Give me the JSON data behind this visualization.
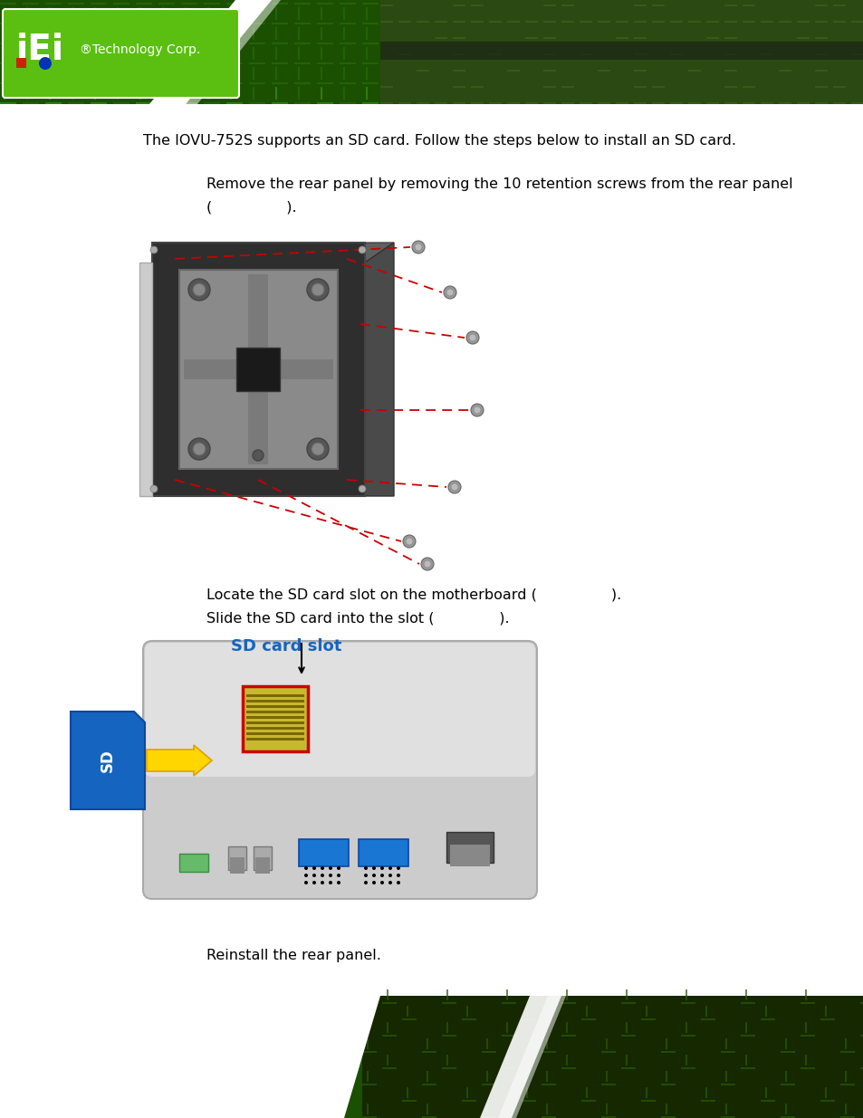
{
  "bg_color": "#ffffff",
  "title_text": "The IOVU-752S supports an SD card. Follow the steps below to install an SD card.",
  "step1_line1": "Remove the rear panel by removing the 10 retention screws from the rear panel",
  "step1_line2": "(                ).",
  "step2_line1": "Locate the SD card slot on the motherboard (                ).",
  "step3_line1": "Slide the SD card into the slot (              ).",
  "sd_card_label": "SD card slot",
  "step4_line1": "Reinstall the rear panel.",
  "font_size_body": 11.5,
  "text_color": "#000000",
  "sd_label_color": "#1565C0",
  "header_green_dark": "#1a5c00",
  "header_green_light": "#4aaa00",
  "footer_green_dark": "#1a5c00",
  "footer_green_light": "#4aaa00",
  "panel_front_color": "#3a3a3a",
  "panel_side_color": "#555555",
  "panel_top_color": "#666666",
  "panel_edge_color": "#888888",
  "vesa_bracket_color": "#707070",
  "vesa_hole_color": "#2a2a2a",
  "screw_color": "#888888",
  "board_bg": "#c8c8c8",
  "sd_blue": "#1565C0",
  "arrow_yellow": "#FFD600",
  "slot_gold": "#b8a040",
  "slot_border": "#cc0000"
}
